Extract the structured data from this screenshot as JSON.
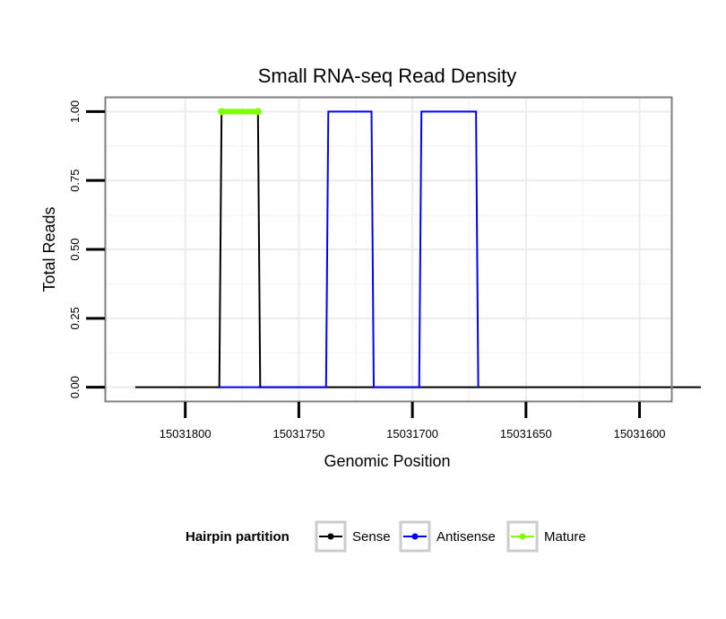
{
  "chart_data": {
    "type": "line",
    "title": "Small RNA-seq Read Density",
    "xlabel": "Genomic Position",
    "ylabel": "Total Reads",
    "x_reversed": true,
    "xlim": [
      15031835,
      15031586
    ],
    "ylim": [
      -0.05,
      1.05
    ],
    "x_ticks": [
      15031800,
      15031750,
      15031700,
      15031650,
      15031600
    ],
    "x_tick_labels": [
      "15031800",
      "15031750",
      "15031700",
      "15031650",
      "15031600"
    ],
    "y_ticks": [
      0,
      0.25,
      0.5,
      0.75,
      1
    ],
    "y_tick_labels": [
      "0.00",
      "0.25",
      "0.50",
      "0.75",
      "1.00"
    ],
    "grid": true,
    "legend": {
      "title": "Hairpin partition",
      "position": "bottom"
    },
    "series": [
      {
        "name": "Sense",
        "color": "#000000",
        "x": [
          15031822,
          15031785,
          15031784,
          15031785,
          15031768,
          15031767,
          15031768,
          15031573
        ],
        "y": [
          0,
          0,
          1,
          1,
          1,
          0,
          0,
          0
        ]
      },
      {
        "name": "Antisense",
        "color": "#0000ff",
        "x": [
          15031785,
          15031768,
          15031768,
          15031738,
          15031737,
          15031737,
          15031718,
          15031717,
          15031717,
          15031697,
          15031696,
          15031696,
          15031672,
          15031671,
          15031671
        ],
        "y": [
          0,
          0,
          0,
          0,
          1,
          1,
          1,
          0,
          0,
          0,
          1,
          1,
          1,
          0,
          0
        ]
      },
      {
        "name": "Mature",
        "color": "#7fff00",
        "x": [
          15031784,
          15031768
        ],
        "y": [
          1,
          1
        ]
      }
    ]
  }
}
